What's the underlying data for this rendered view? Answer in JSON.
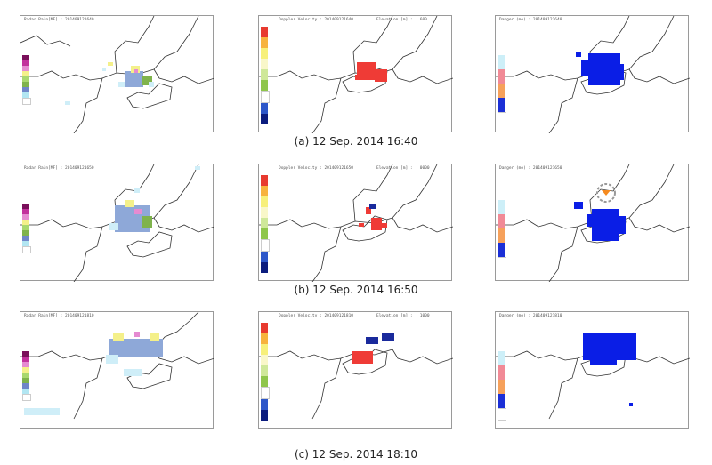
{
  "rows": [
    {
      "caption": "(a) 12 Sep. 2014 16:40",
      "titles": {
        "radar": "Radar Rain[MF] : 201409121640",
        "doppler": "Doppler Velocity : 201409121640",
        "doppler_elev": "Elevation [m] :   600",
        "danger": "Danger (mo) : 201409121640"
      }
    },
    {
      "caption": "(b) 12 Sep. 2014 16:50",
      "titles": {
        "radar": "Radar Rain[MF] : 201409121650",
        "doppler": "Doppler Velocity : 201409121650",
        "doppler_elev": "Elevation [m] :   0000",
        "danger": "Danger (mo) : 201409121650"
      }
    },
    {
      "caption": "(c) 12 Sep. 2014 18:10",
      "titles": {
        "radar": "Radar Rain[MF] : 201409121810",
        "doppler": "Doppler Velocity : 201409121810",
        "doppler_elev": "Elevation [m] :   1000",
        "danger": "Danger (mo) : 201409121810"
      }
    }
  ],
  "legends": {
    "radar_colors": [
      "#7a0f5a",
      "#c2319c",
      "#e58bd1",
      "#f4f08a",
      "#a9d86e",
      "#7fb34c",
      "#6f86c9",
      "#b2e6f2",
      "#ffffff"
    ],
    "doppler_colors": [
      "#e83a2f",
      "#f7b33d",
      "#f7f07a",
      "#f9f7c9",
      "#cfe89a",
      "#8fc64b",
      "#ffffff",
      "#2d57c9",
      "#0b1c7e"
    ],
    "danger_colors": [
      "#cdeff8",
      "#f18a96",
      "#f6a15b",
      "#1b2fd6",
      "#ffffff"
    ]
  },
  "colors": {
    "rain_light": "#cfeef8",
    "rain_med": "#8ea8d8",
    "doppler_red": "#ef3b36",
    "doppler_blue": "#1a2a9c",
    "danger_blue": "#0a1ee6",
    "danger_orange": "#f58a1f",
    "highlight_circle": "#999999"
  }
}
